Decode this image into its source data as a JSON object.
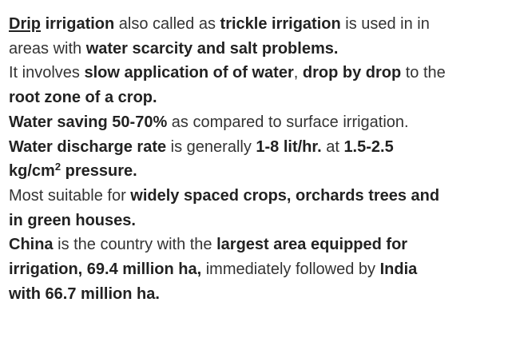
{
  "paragraphs": [
    {
      "lines": [
        [
          {
            "t": "Drip",
            "b": true,
            "u": true
          },
          {
            "t": " "
          },
          {
            "t": "irrigation",
            "b": true
          },
          {
            "t": " also called as "
          },
          {
            "t": "trickle irrigation",
            "b": true
          },
          {
            "t": " is used in in"
          }
        ],
        [
          {
            "t": "areas with "
          },
          {
            "t": "water scarcity and salt problems.",
            "b": true
          }
        ]
      ]
    },
    {
      "lines": [
        [
          {
            "t": "It involves "
          },
          {
            "t": "slow application of of water",
            "b": true
          },
          {
            "t": ", "
          },
          {
            "t": "drop by drop",
            "b": true
          },
          {
            "t": " to the"
          }
        ],
        [
          {
            "t": "root zone of a crop.",
            "b": true
          }
        ]
      ]
    },
    {
      "lines": [
        [
          {
            "t": "Water saving 50-70%",
            "b": true
          },
          {
            "t": " as compared to surface irrigation."
          }
        ]
      ]
    },
    {
      "lines": [
        [
          {
            "t": "Water discharge rate",
            "b": true
          },
          {
            "t": " is generally "
          },
          {
            "t": "1-8 lit/hr.",
            "b": true
          },
          {
            "t": " at "
          },
          {
            "t": "1.5-2.5",
            "b": true
          }
        ],
        [
          {
            "t": "kg/cm",
            "b": true
          },
          {
            "t": "2",
            "b": true,
            "sup": true
          },
          {
            "t": " pressure.",
            "b": true
          }
        ]
      ]
    },
    {
      "lines": [
        [
          {
            "t": "Most suitable for "
          },
          {
            "t": "widely spaced crops, orchards trees and",
            "b": true
          }
        ],
        [
          {
            "t": "in green houses.",
            "b": true
          }
        ]
      ]
    },
    {
      "lines": [
        [
          {
            "t": "China",
            "b": true
          },
          {
            "t": " is the country with the "
          },
          {
            "t": "largest area equipped for",
            "b": true
          }
        ],
        [
          {
            "t": "irrigation, 69.4 million ha,",
            "b": true
          },
          {
            "t": " immediately followed by "
          },
          {
            "t": "India",
            "b": true
          }
        ],
        [
          {
            "t": "with 66.7 million ha.",
            "b": true
          }
        ]
      ]
    }
  ]
}
